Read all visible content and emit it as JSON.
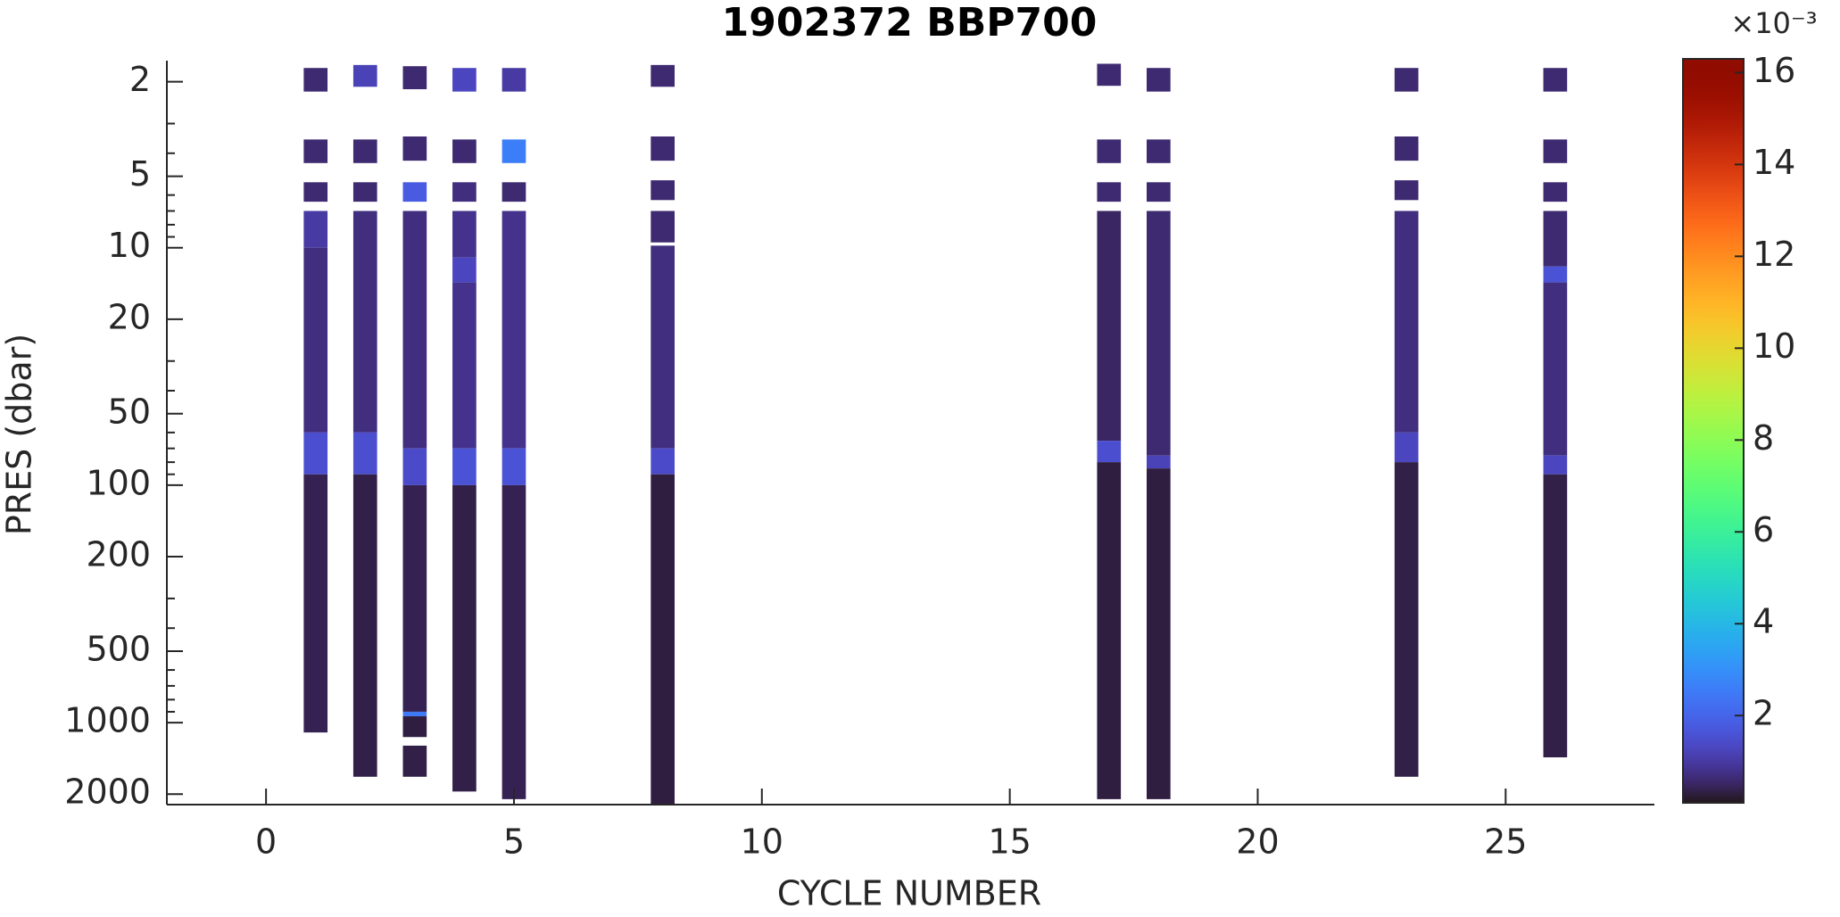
{
  "chart_data": {
    "type": "profile-section",
    "title": "1902372 BBP700",
    "x_label": "CYCLE NUMBER",
    "y_label": "PRES (dbar)",
    "xlim": [
      -2,
      28
    ],
    "xticks": [
      0,
      5,
      10,
      15,
      20,
      25
    ],
    "ylim": [
      1.63,
      2214
    ],
    "yticks": [
      2,
      5,
      10,
      20,
      50,
      100,
      200,
      500,
      1000,
      2000
    ],
    "yminorticks": [
      3,
      4,
      6,
      7,
      8,
      9,
      30,
      40,
      60,
      70,
      80,
      90,
      300,
      400,
      600,
      700,
      800,
      900
    ],
    "y_scale": "log",
    "y_reversed": true,
    "cmap": "turbo",
    "clim": [
      0.1,
      16.3
    ],
    "cticks": [
      2,
      4,
      6,
      8,
      10,
      12,
      14,
      16
    ],
    "colorbar_multiplier": "×10⁻³",
    "series": [
      {
        "x": 1,
        "cells": [
          [
            1.75,
            2.2,
            0.6
          ],
          [
            3.5,
            4.4,
            0.6
          ],
          [
            5.3,
            6.4,
            0.6
          ],
          [
            7,
            10,
            1.0
          ],
          [
            10,
            60,
            0.7
          ],
          [
            60,
            90,
            1.5
          ],
          [
            90,
            1100,
            0.4
          ]
        ]
      },
      {
        "x": 2,
        "cells": [
          [
            1.7,
            2.1,
            1.2
          ],
          [
            3.5,
            4.4,
            0.6
          ],
          [
            5.3,
            6.4,
            0.6
          ],
          [
            7,
            60,
            0.7
          ],
          [
            60,
            90,
            1.5
          ],
          [
            90,
            1690,
            0.35
          ]
        ]
      },
      {
        "x": 3,
        "cells": [
          [
            1.72,
            2.15,
            0.6
          ],
          [
            3.4,
            4.3,
            0.6
          ],
          [
            5.3,
            6.4,
            1.8
          ],
          [
            7,
            70,
            0.7
          ],
          [
            70,
            100,
            1.4
          ],
          [
            100,
            900,
            0.4
          ],
          [
            900,
            940,
            2.5
          ],
          [
            940,
            1150,
            0.3
          ],
          [
            1250,
            1690,
            0.35
          ]
        ]
      },
      {
        "x": 4,
        "cells": [
          [
            1.75,
            2.2,
            1.3
          ],
          [
            3.5,
            4.4,
            0.6
          ],
          [
            5.3,
            6.4,
            0.7
          ],
          [
            7,
            11,
            0.8
          ],
          [
            11,
            14,
            1.3
          ],
          [
            14,
            70,
            0.8
          ],
          [
            70,
            100,
            1.6
          ],
          [
            100,
            1950,
            0.35
          ]
        ]
      },
      {
        "x": 5,
        "cells": [
          [
            1.75,
            2.2,
            1.0
          ],
          [
            3.5,
            4.4,
            2.6
          ],
          [
            5.3,
            6.4,
            0.6
          ],
          [
            7,
            70,
            0.8
          ],
          [
            70,
            100,
            1.6
          ],
          [
            100,
            2100,
            0.4
          ]
        ]
      },
      {
        "x": 8,
        "cells": [
          [
            1.7,
            2.1,
            0.6
          ],
          [
            3.4,
            4.3,
            0.6
          ],
          [
            5.2,
            6.3,
            0.6
          ],
          [
            7,
            9.5,
            0.6
          ],
          [
            9.8,
            70,
            0.7
          ],
          [
            70,
            90,
            1.4
          ],
          [
            90,
            2230,
            0.3
          ]
        ]
      },
      {
        "x": 17,
        "cells": [
          [
            1.68,
            2.08,
            0.6
          ],
          [
            3.5,
            4.4,
            0.6
          ],
          [
            5.3,
            6.4,
            0.6
          ],
          [
            7,
            65,
            0.5
          ],
          [
            65,
            80,
            1.5
          ],
          [
            80,
            2100,
            0.3
          ]
        ]
      },
      {
        "x": 18,
        "cells": [
          [
            1.75,
            2.2,
            0.6
          ],
          [
            3.5,
            4.4,
            0.6
          ],
          [
            5.3,
            6.4,
            0.6
          ],
          [
            7,
            75,
            0.6
          ],
          [
            75,
            85,
            1.2
          ],
          [
            85,
            2100,
            0.3
          ]
        ]
      },
      {
        "x": 23,
        "cells": [
          [
            1.75,
            2.2,
            0.6
          ],
          [
            3.4,
            4.3,
            0.6
          ],
          [
            5.2,
            6.3,
            0.6
          ],
          [
            7,
            60,
            0.7
          ],
          [
            60,
            80,
            1.3
          ],
          [
            80,
            1690,
            0.35
          ]
        ]
      },
      {
        "x": 26,
        "cells": [
          [
            1.75,
            2.2,
            0.6
          ],
          [
            3.5,
            4.4,
            0.6
          ],
          [
            5.3,
            6.4,
            0.6
          ],
          [
            7,
            12,
            0.6
          ],
          [
            12,
            14,
            1.6
          ],
          [
            14,
            75,
            0.7
          ],
          [
            75,
            90,
            1.3
          ],
          [
            90,
            1400,
            0.35
          ]
        ]
      }
    ]
  }
}
